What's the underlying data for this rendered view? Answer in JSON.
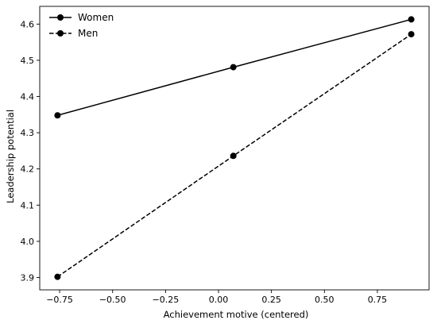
{
  "chart_data": {
    "type": "line",
    "xlabel": "Achievement motive (centered)",
    "ylabel": "Leadership potential",
    "x": [
      -0.76,
      0.07,
      0.91
    ],
    "series": [
      {
        "name": "Women",
        "values": [
          4.348,
          4.481,
          4.613
        ],
        "style": "solid",
        "marker": "circle",
        "color": "#000000"
      },
      {
        "name": "Men",
        "values": [
          3.902,
          4.236,
          4.572
        ],
        "style": "dashed",
        "marker": "circle",
        "color": "#000000"
      }
    ],
    "xlim": [
      -0.844,
      0.994
    ],
    "ylim": [
      3.866,
      4.649
    ],
    "xticks": [
      -0.75,
      -0.5,
      -0.25,
      0.0,
      0.25,
      0.5,
      0.75
    ],
    "xtick_labels": [
      "−0.75",
      "−0.50",
      "−0.25",
      "0.00",
      "0.25",
      "0.50",
      "0.75"
    ],
    "yticks": [
      3.9,
      4.0,
      4.1,
      4.2,
      4.3,
      4.4,
      4.5,
      4.6
    ],
    "ytick_labels": [
      "3.9",
      "4.0",
      "4.1",
      "4.2",
      "4.3",
      "4.4",
      "4.5",
      "4.6"
    ],
    "grid": false,
    "legend_position": "top-left"
  }
}
